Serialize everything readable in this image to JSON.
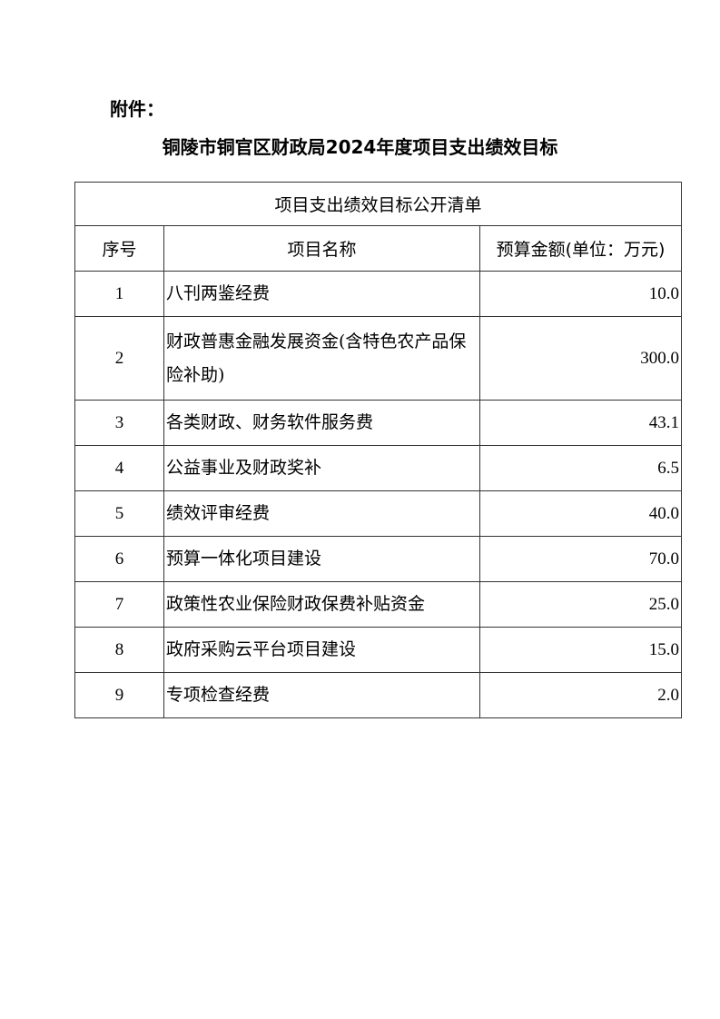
{
  "attachment_label": "附件：",
  "doc_title": "铜陵市铜官区财政局2024年度项目支出绩效目标",
  "table": {
    "caption": "项目支出绩效目标公开清单",
    "headers": [
      "序号",
      "项目名称",
      "预算金额(单位：万元)"
    ],
    "rows": [
      {
        "no": "1",
        "name": "八刊两鉴经费",
        "amount": "10.0"
      },
      {
        "no": "2",
        "name": "财政普惠金融发展资金(含特色农产品保险补助)",
        "amount": "300.0"
      },
      {
        "no": "3",
        "name": "各类财政、财务软件服务费",
        "amount": "43.1"
      },
      {
        "no": "4",
        "name": "公益事业及财政奖补",
        "amount": "6.5"
      },
      {
        "no": "5",
        "name": "绩效评审经费",
        "amount": "40.0"
      },
      {
        "no": "6",
        "name": "预算一体化项目建设",
        "amount": "70.0"
      },
      {
        "no": "7",
        "name": "政策性农业保险财政保费补贴资金",
        "amount": "25.0"
      },
      {
        "no": "8",
        "name": "政府采购云平台项目建设",
        "amount": "15.0"
      },
      {
        "no": "9",
        "name": "专项检查经费",
        "amount": "2.0"
      }
    ]
  }
}
